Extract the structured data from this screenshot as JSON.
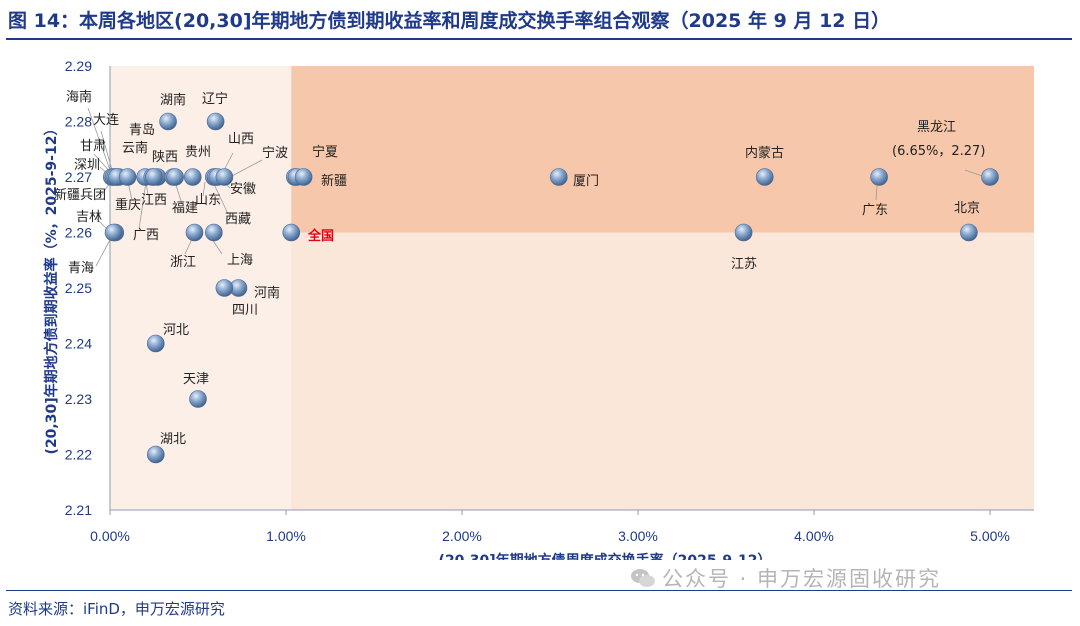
{
  "header": {
    "title": "图 14：本周各地区(20,30]年期地方债到期收益率和周度成交换手率组合观察（2025 年 9 月 12 日）"
  },
  "footer": {
    "source": "资料来源：iFinD，申万宏源研究",
    "watermark": "公众号 · 申万宏源固收研究"
  },
  "colors": {
    "title": "#1f3a8a",
    "quadrant_light": "#fbe6da",
    "quadrant_dark": "#f6c7aa",
    "marker": "#7f9fc6",
    "highlight_label": "#e60012"
  },
  "chart_data": {
    "type": "scatter",
    "xlabel": "(20,30]年期地方债周度成交换手率（2025-9-12）",
    "ylabel": "(20,30]年期地方债到期收益率（%，2025-9-12）",
    "xlim": [
      0,
      5.1
    ],
    "ylim": [
      2.21,
      2.29
    ],
    "x_ticks": [
      "0.00%",
      "1.00%",
      "2.00%",
      "3.00%",
      "4.00%",
      "5.00%"
    ],
    "y_ticks": [
      "2.21",
      "2.22",
      "2.23",
      "2.24",
      "2.25",
      "2.26",
      "2.27",
      "2.28",
      "2.29"
    ],
    "quadrant_split": {
      "x": 1.03,
      "y": 2.26
    },
    "annotation": "(6.65%，2.27)",
    "points": [
      {
        "name": "海南",
        "x": 0.01,
        "y": 2.27
      },
      {
        "name": "大连",
        "x": 0.02,
        "y": 2.27
      },
      {
        "name": "甘肃",
        "x": 0.03,
        "y": 2.27
      },
      {
        "name": "深圳",
        "x": 0.05,
        "y": 2.27
      },
      {
        "name": "新疆兵团",
        "x": 0.04,
        "y": 2.27
      },
      {
        "name": "吉林",
        "x": 0.03,
        "y": 2.26
      },
      {
        "name": "青海",
        "x": 0.02,
        "y": 2.26
      },
      {
        "name": "重庆",
        "x": 0.1,
        "y": 2.27
      },
      {
        "name": "云南",
        "x": 0.2,
        "y": 2.27
      },
      {
        "name": "青岛",
        "x": 0.24,
        "y": 2.27
      },
      {
        "name": "江西",
        "x": 0.27,
        "y": 2.27
      },
      {
        "name": "广西",
        "x": 0.25,
        "y": 2.27
      },
      {
        "name": "陕西",
        "x": 0.36,
        "y": 2.27
      },
      {
        "name": "福建",
        "x": 0.37,
        "y": 2.27
      },
      {
        "name": "湖南",
        "x": 0.33,
        "y": 2.28
      },
      {
        "name": "贵州",
        "x": 0.47,
        "y": 2.27
      },
      {
        "name": "辽宁",
        "x": 0.6,
        "y": 2.28
      },
      {
        "name": "山西",
        "x": 0.59,
        "y": 2.27
      },
      {
        "name": "山东",
        "x": 0.6,
        "y": 2.27
      },
      {
        "name": "西藏",
        "x": 0.61,
        "y": 2.27
      },
      {
        "name": "安徽",
        "x": 0.65,
        "y": 2.27
      },
      {
        "name": "浙江",
        "x": 0.48,
        "y": 2.26
      },
      {
        "name": "上海",
        "x": 0.59,
        "y": 2.26
      },
      {
        "name": "河南",
        "x": 0.73,
        "y": 2.25
      },
      {
        "name": "四川",
        "x": 0.65,
        "y": 2.25
      },
      {
        "name": "河北",
        "x": 0.26,
        "y": 2.24
      },
      {
        "name": "天津",
        "x": 0.5,
        "y": 2.23
      },
      {
        "name": "湖北",
        "x": 0.26,
        "y": 2.22
      },
      {
        "name": "全国",
        "x": 1.03,
        "y": 2.26
      },
      {
        "name": "宁波",
        "x": 1.05,
        "y": 2.27
      },
      {
        "name": "宁夏",
        "x": 1.06,
        "y": 2.27
      },
      {
        "name": "新疆",
        "x": 1.1,
        "y": 2.27
      },
      {
        "name": "厦门",
        "x": 2.55,
        "y": 2.27
      },
      {
        "name": "江苏",
        "x": 3.6,
        "y": 2.26
      },
      {
        "name": "内蒙古",
        "x": 3.72,
        "y": 2.27
      },
      {
        "name": "广东",
        "x": 4.37,
        "y": 2.27
      },
      {
        "name": "北京",
        "x": 4.88,
        "y": 2.26
      },
      {
        "name": "黑龙江",
        "x": 5.0,
        "y": 2.27
      }
    ]
  }
}
